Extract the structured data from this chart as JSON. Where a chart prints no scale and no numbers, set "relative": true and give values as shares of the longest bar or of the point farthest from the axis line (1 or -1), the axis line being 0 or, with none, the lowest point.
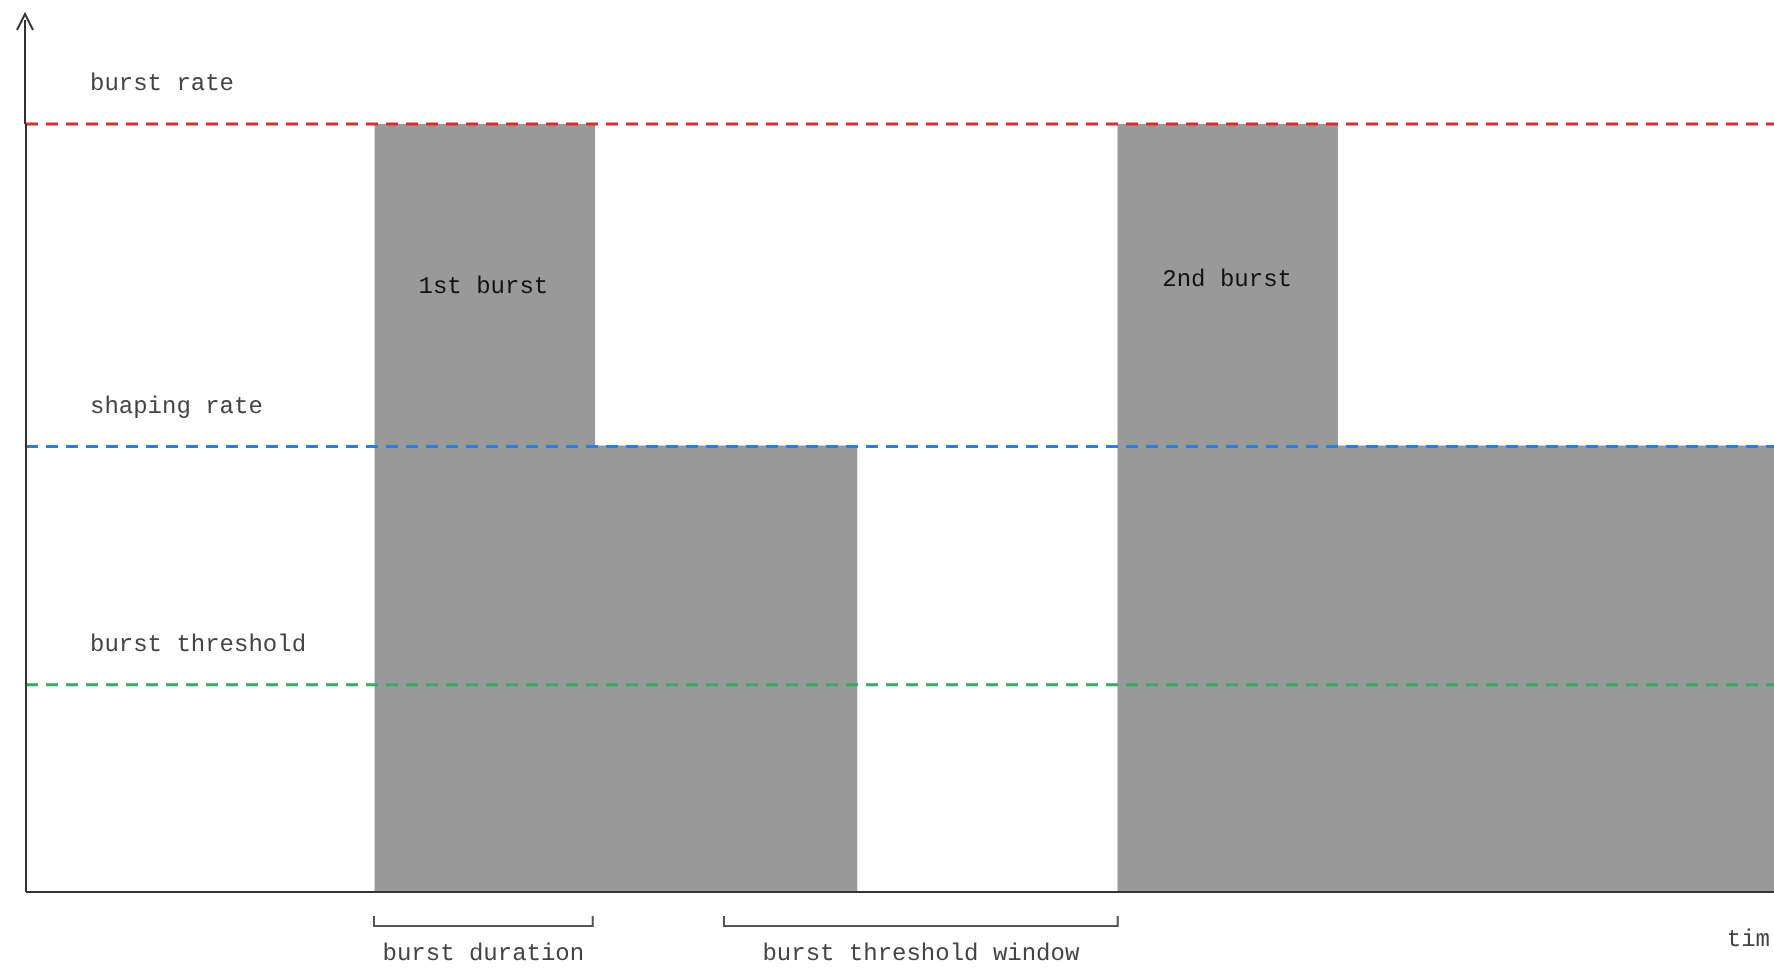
{
  "chart_data": {
    "type": "area",
    "relative": true,
    "xlabel": "tim",
    "line_style": "solid",
    "color": "#999999",
    "categories": [
      null,
      null,
      null,
      null,
      null,
      null,
      null,
      null,
      null,
      null,
      null,
      null,
      null,
      null,
      null,
      null,
      null,
      null,
      null,
      null,
      null,
      null,
      null,
      null,
      null,
      null,
      null,
      null,
      null,
      null,
      null,
      null,
      null,
      null,
      null,
      null,
      null,
      null,
      null,
      null,
      null
    ],
    "values": [
      0,
      0,
      0,
      0,
      0,
      0,
      0,
      0,
      1,
      1,
      1,
      1,
      1,
      0.58,
      0.58,
      0.58,
      0.58,
      0.58,
      0.58,
      0,
      0,
      0,
      0,
      0,
      0,
      1,
      1,
      1,
      1,
      1,
      0.58,
      0.58,
      0.58,
      0.58,
      0.58,
      0.58,
      0.58,
      0.58,
      0.58,
      0.58,
      0.58
    ],
    "ref_lines": [
      {
        "axis": "y",
        "value": 1,
        "label": "burst rate",
        "color": "#d9302c",
        "line_style": "dashed"
      },
      {
        "axis": "y",
        "value": 0.58,
        "label": "shaping rate",
        "color": "#2f7fd6",
        "line_style": "dashed"
      },
      {
        "axis": "y",
        "value": 0.27,
        "label": "burst threshold",
        "color": "#3aa865",
        "line_style": "dashed"
      }
    ],
    "annotations": [
      "1st burst",
      "2nd burst",
      "burst duration",
      "burst threshold window"
    ]
  }
}
